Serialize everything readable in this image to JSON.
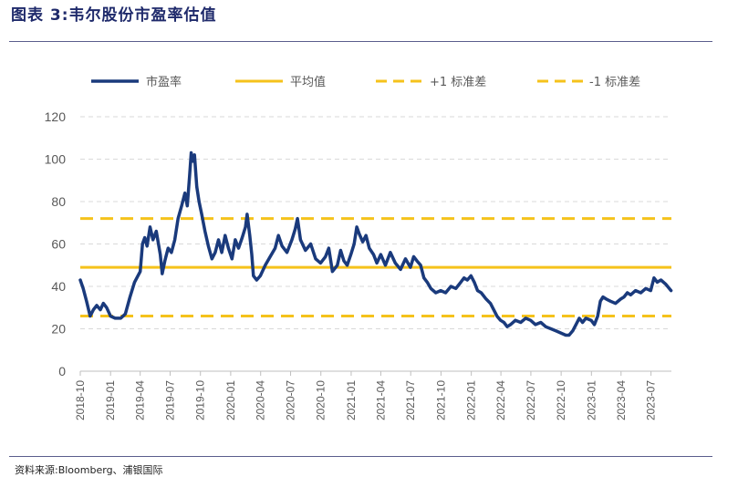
{
  "figure": {
    "title": "图表 3:韦尔股份市盈率估值",
    "source": "资料来源:Bloomberg、浦银国际"
  },
  "chart_data": {
    "type": "line",
    "title": "",
    "xlabel": "",
    "ylabel": "",
    "ylim": [
      0,
      120
    ],
    "yticks": [
      0,
      20,
      40,
      60,
      80,
      100,
      120
    ],
    "xlim": [
      "2018-10",
      "2023-09"
    ],
    "xticks": [
      "2018-10",
      "2019-01",
      "2019-04",
      "2019-07",
      "2019-10",
      "2020-01",
      "2020-04",
      "2020-07",
      "2020-10",
      "2021-01",
      "2021-04",
      "2021-07",
      "2021-10",
      "2022-01",
      "2022-04",
      "2022-07",
      "2022-10",
      "2023-01",
      "2023-04",
      "2023-07"
    ],
    "grid": "horizontal-dashed",
    "legend_position": "top",
    "series": [
      {
        "name": "市盈率",
        "style": "solid-thick",
        "color": "#1a3a7c",
        "points": [
          [
            "2018-10-01",
            43
          ],
          [
            "2018-10-10",
            39
          ],
          [
            "2018-10-20",
            33
          ],
          [
            "2018-10-31",
            26
          ],
          [
            "2018-11-10",
            29
          ],
          [
            "2018-11-20",
            31
          ],
          [
            "2018-12-01",
            29
          ],
          [
            "2018-12-10",
            32
          ],
          [
            "2018-12-20",
            30
          ],
          [
            "2019-01-01",
            26
          ],
          [
            "2019-01-15",
            25
          ],
          [
            "2019-02-01",
            25
          ],
          [
            "2019-02-15",
            27
          ],
          [
            "2019-03-01",
            35
          ],
          [
            "2019-03-15",
            42
          ],
          [
            "2019-04-01",
            47
          ],
          [
            "2019-04-08",
            60
          ],
          [
            "2019-04-15",
            63
          ],
          [
            "2019-04-22",
            59
          ],
          [
            "2019-05-01",
            68
          ],
          [
            "2019-05-10",
            62
          ],
          [
            "2019-05-20",
            66
          ],
          [
            "2019-06-01",
            55
          ],
          [
            "2019-06-07",
            46
          ],
          [
            "2019-06-15",
            52
          ],
          [
            "2019-06-25",
            58
          ],
          [
            "2019-07-05",
            56
          ],
          [
            "2019-07-15",
            62
          ],
          [
            "2019-07-25",
            72
          ],
          [
            "2019-08-05",
            78
          ],
          [
            "2019-08-15",
            84
          ],
          [
            "2019-08-22",
            78
          ],
          [
            "2019-08-29",
            92
          ],
          [
            "2019-09-03",
            103
          ],
          [
            "2019-09-08",
            99
          ],
          [
            "2019-09-13",
            102
          ],
          [
            "2019-09-20",
            87
          ],
          [
            "2019-09-27",
            80
          ],
          [
            "2019-10-05",
            74
          ],
          [
            "2019-10-15",
            66
          ],
          [
            "2019-10-25",
            59
          ],
          [
            "2019-11-05",
            53
          ],
          [
            "2019-11-15",
            56
          ],
          [
            "2019-11-25",
            62
          ],
          [
            "2019-12-05",
            56
          ],
          [
            "2019-12-15",
            64
          ],
          [
            "2019-12-25",
            58
          ],
          [
            "2020-01-05",
            53
          ],
          [
            "2020-01-15",
            62
          ],
          [
            "2020-01-25",
            58
          ],
          [
            "2020-02-05",
            63
          ],
          [
            "2020-02-15",
            68
          ],
          [
            "2020-02-20",
            74
          ],
          [
            "2020-02-28",
            64
          ],
          [
            "2020-03-05",
            55
          ],
          [
            "2020-03-10",
            45
          ],
          [
            "2020-03-20",
            43
          ],
          [
            "2020-03-31",
            45
          ],
          [
            "2020-04-15",
            50
          ],
          [
            "2020-04-30",
            54
          ],
          [
            "2020-05-15",
            58
          ],
          [
            "2020-05-25",
            64
          ],
          [
            "2020-06-05",
            59
          ],
          [
            "2020-06-20",
            56
          ],
          [
            "2020-07-05",
            62
          ],
          [
            "2020-07-15",
            67
          ],
          [
            "2020-07-22",
            72
          ],
          [
            "2020-07-31",
            62
          ],
          [
            "2020-08-15",
            57
          ],
          [
            "2020-08-31",
            60
          ],
          [
            "2020-09-15",
            53
          ],
          [
            "2020-09-30",
            51
          ],
          [
            "2020-10-15",
            54
          ],
          [
            "2020-10-25",
            58
          ],
          [
            "2020-11-05",
            47
          ],
          [
            "2020-11-20",
            50
          ],
          [
            "2020-11-30",
            57
          ],
          [
            "2020-12-10",
            52
          ],
          [
            "2020-12-20",
            50
          ],
          [
            "2020-12-31",
            55
          ],
          [
            "2021-01-10",
            60
          ],
          [
            "2021-01-18",
            68
          ],
          [
            "2021-01-25",
            65
          ],
          [
            "2021-02-05",
            61
          ],
          [
            "2021-02-15",
            64
          ],
          [
            "2021-02-25",
            58
          ],
          [
            "2021-03-10",
            55
          ],
          [
            "2021-03-20",
            51
          ],
          [
            "2021-04-01",
            55
          ],
          [
            "2021-04-15",
            50
          ],
          [
            "2021-04-30",
            56
          ],
          [
            "2021-05-15",
            51
          ],
          [
            "2021-05-31",
            48
          ],
          [
            "2021-06-15",
            53
          ],
          [
            "2021-06-30",
            49
          ],
          [
            "2021-07-10",
            54
          ],
          [
            "2021-07-20",
            52
          ],
          [
            "2021-07-31",
            50
          ],
          [
            "2021-08-10",
            44
          ],
          [
            "2021-08-20",
            42
          ],
          [
            "2021-08-31",
            39
          ],
          [
            "2021-09-15",
            37
          ],
          [
            "2021-09-30",
            38
          ],
          [
            "2021-10-15",
            37
          ],
          [
            "2021-10-31",
            40
          ],
          [
            "2021-11-15",
            39
          ],
          [
            "2021-11-30",
            42
          ],
          [
            "2021-12-10",
            44
          ],
          [
            "2021-12-20",
            43
          ],
          [
            "2021-12-31",
            45
          ],
          [
            "2022-01-10",
            42
          ],
          [
            "2022-01-20",
            38
          ],
          [
            "2022-01-31",
            37
          ],
          [
            "2022-02-15",
            34
          ],
          [
            "2022-02-28",
            32
          ],
          [
            "2022-03-10",
            29
          ],
          [
            "2022-03-20",
            26
          ],
          [
            "2022-03-31",
            24
          ],
          [
            "2022-04-10",
            23
          ],
          [
            "2022-04-20",
            21
          ],
          [
            "2022-04-30",
            22
          ],
          [
            "2022-05-15",
            24
          ],
          [
            "2022-05-31",
            23
          ],
          [
            "2022-06-15",
            25
          ],
          [
            "2022-06-30",
            24
          ],
          [
            "2022-07-15",
            22
          ],
          [
            "2022-07-31",
            23
          ],
          [
            "2022-08-15",
            21
          ],
          [
            "2022-08-31",
            20
          ],
          [
            "2022-09-15",
            19
          ],
          [
            "2022-09-30",
            18
          ],
          [
            "2022-10-15",
            17
          ],
          [
            "2022-10-25",
            17
          ],
          [
            "2022-11-05",
            19
          ],
          [
            "2022-11-15",
            22
          ],
          [
            "2022-11-25",
            25
          ],
          [
            "2022-12-05",
            23
          ],
          [
            "2022-12-15",
            25
          ],
          [
            "2022-12-31",
            24
          ],
          [
            "2023-01-10",
            22
          ],
          [
            "2023-01-20",
            26
          ],
          [
            "2023-01-28",
            33
          ],
          [
            "2023-02-05",
            35
          ],
          [
            "2023-02-15",
            34
          ],
          [
            "2023-02-28",
            33
          ],
          [
            "2023-03-15",
            32
          ],
          [
            "2023-03-31",
            34
          ],
          [
            "2023-04-10",
            35
          ],
          [
            "2023-04-20",
            37
          ],
          [
            "2023-04-30",
            36
          ],
          [
            "2023-05-15",
            38
          ],
          [
            "2023-05-31",
            37
          ],
          [
            "2023-06-15",
            39
          ],
          [
            "2023-06-30",
            38
          ],
          [
            "2023-07-10",
            44
          ],
          [
            "2023-07-20",
            42
          ],
          [
            "2023-07-31",
            43
          ],
          [
            "2023-08-15",
            41
          ],
          [
            "2023-08-31",
            38
          ]
        ]
      },
      {
        "name": "平均值",
        "style": "solid",
        "color": "#f5c21b",
        "value": 49
      },
      {
        "name": "+1 标准差",
        "style": "dashed",
        "color": "#f5c21b",
        "value": 72
      },
      {
        "name": "-1 标准差",
        "style": "dashed",
        "color": "#f5c21b",
        "value": 26
      }
    ]
  }
}
